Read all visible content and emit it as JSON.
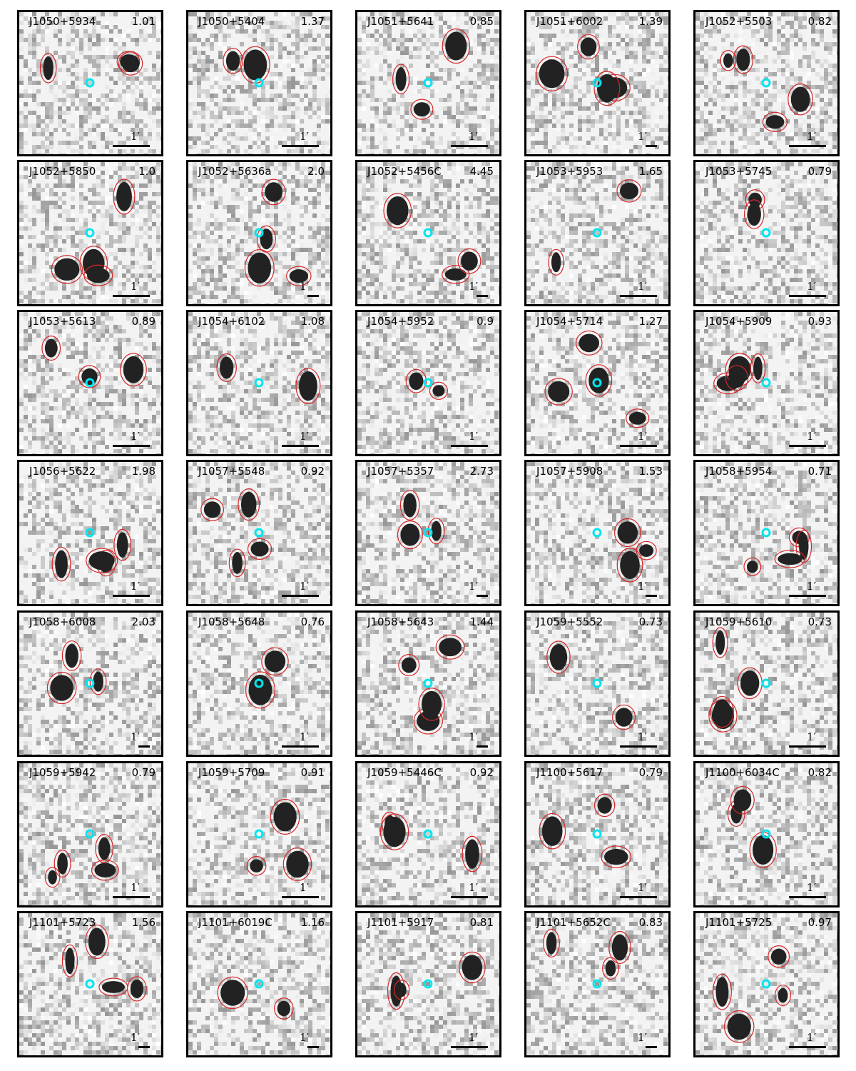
{
  "figure": {
    "scale_label": "1′",
    "colors": {
      "contour": "#d62728",
      "host_marker": "#00e5ee",
      "frame": "#000000"
    },
    "panels": [
      {
        "name": "J1050+5934",
        "value": "1.01"
      },
      {
        "name": "J1050+5404",
        "value": "1.37"
      },
      {
        "name": "J1051+5641",
        "value": "0.85"
      },
      {
        "name": "J1051+6002",
        "value": "1.39"
      },
      {
        "name": "J1052+5503",
        "value": "0.82"
      },
      {
        "name": "J1052+5850",
        "value": "1.0"
      },
      {
        "name": "J1052+5636a",
        "value": "2.0"
      },
      {
        "name": "J1052+5456C",
        "value": "4.45"
      },
      {
        "name": "J1053+5953",
        "value": "1.65"
      },
      {
        "name": "J1053+5745",
        "value": "0.79"
      },
      {
        "name": "J1053+5613",
        "value": "0.89"
      },
      {
        "name": "J1054+6102",
        "value": "1.08"
      },
      {
        "name": "J1054+5952",
        "value": "0.9"
      },
      {
        "name": "J1054+5714",
        "value": "1.27"
      },
      {
        "name": "J1054+5909",
        "value": "0.93"
      },
      {
        "name": "J1056+5622",
        "value": "1.98"
      },
      {
        "name": "J1057+5548",
        "value": "0.92"
      },
      {
        "name": "J1057+5357",
        "value": "2.73"
      },
      {
        "name": "J1057+5908",
        "value": "1.53"
      },
      {
        "name": "J1058+5954",
        "value": "0.71"
      },
      {
        "name": "J1058+6008",
        "value": "2.03"
      },
      {
        "name": "J1058+5648",
        "value": "0.76"
      },
      {
        "name": "J1058+5643",
        "value": "1.44"
      },
      {
        "name": "J1059+5552",
        "value": "0.73"
      },
      {
        "name": "J1059+5610",
        "value": "0.73"
      },
      {
        "name": "J1059+5942",
        "value": "0.79"
      },
      {
        "name": "J1059+5709",
        "value": "0.91"
      },
      {
        "name": "J1059+5446C",
        "value": "0.92"
      },
      {
        "name": "J1100+5617",
        "value": "0.79"
      },
      {
        "name": "J1100+6034C",
        "value": "0.82"
      },
      {
        "name": "J1101+5723",
        "value": "1.56"
      },
      {
        "name": "J1101+6019C",
        "value": "1.16"
      },
      {
        "name": "J1101+5917",
        "value": "0.81"
      },
      {
        "name": "J1101+5652C",
        "value": "0.83"
      },
      {
        "name": "J1101+5725",
        "value": "0.97"
      }
    ]
  }
}
